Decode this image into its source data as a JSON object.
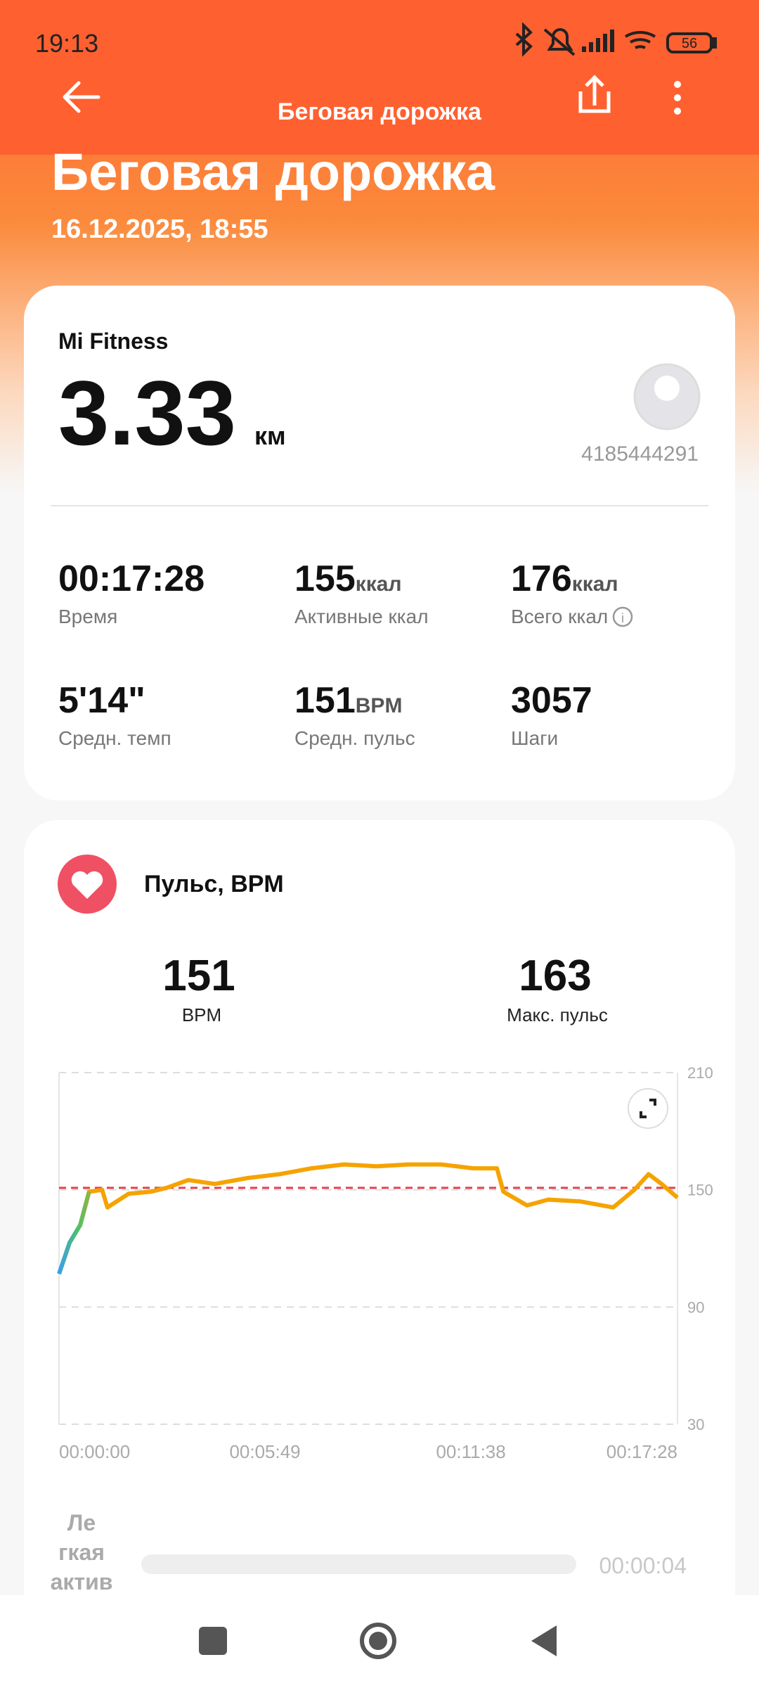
{
  "status_bar": {
    "time": "19:13",
    "battery": "56"
  },
  "header": {
    "title": "Беговая дорожка"
  },
  "summary": {
    "title": "Беговая дорожка",
    "date": "16.12.2025, 18:55",
    "source": "Mi Fitness",
    "distance": "3.33",
    "distance_unit": "км",
    "user_id": "4185444291"
  },
  "stats": [
    {
      "value": "00:17:28",
      "label": "Время"
    },
    {
      "value": "155",
      "unit": "ккал",
      "label": "Активные ккал"
    },
    {
      "value": "176",
      "unit": "ккал",
      "label": "Всего ккал"
    },
    {
      "value": "5'14\"",
      "label": "Средн. темп"
    },
    {
      "value": "151",
      "unit": "BPM",
      "label": "Средн. пульс"
    },
    {
      "value": "3057",
      "label": "Шаги"
    }
  ],
  "heart_rate": {
    "title": "Пульс, BPM",
    "stats": [
      {
        "value": 151,
        "label": "BPM"
      },
      {
        "value": 163,
        "label": "Макс. пульс"
      }
    ]
  },
  "chart_data": {
    "type": "line",
    "x": [
      0,
      18,
      36,
      51,
      73,
      82,
      118,
      155,
      182,
      219,
      264,
      319,
      374,
      428,
      483,
      538,
      592,
      647,
      702,
      742,
      753,
      793,
      829,
      884,
      939,
      975,
      999,
      1021,
      1048
    ],
    "series": [
      {
        "name": "Пульс",
        "color": "#f5a300",
        "values": [
          107,
          123,
          132,
          149,
          150,
          141,
          148,
          149,
          151,
          155,
          153,
          156,
          158,
          161,
          163,
          162,
          163,
          163,
          161,
          161,
          149,
          142,
          145,
          144,
          141,
          150,
          158,
          153,
          146
        ]
      }
    ],
    "xlim": [
      0,
      1048
    ],
    "xticks": [
      {
        "value": 0,
        "label": "00:00:00"
      },
      {
        "value": 349,
        "label": "00:05:49"
      },
      {
        "value": 698,
        "label": "00:11:38"
      },
      {
        "value": 1048,
        "label": "00:17:28"
      }
    ],
    "ylim": [
      30,
      210
    ],
    "yticks": [
      210,
      150,
      90,
      30
    ],
    "grid": true
  },
  "zone": {
    "name_lines": [
      "Ле",
      "гкая",
      "актив"
    ],
    "duration": "00:00:04"
  }
}
